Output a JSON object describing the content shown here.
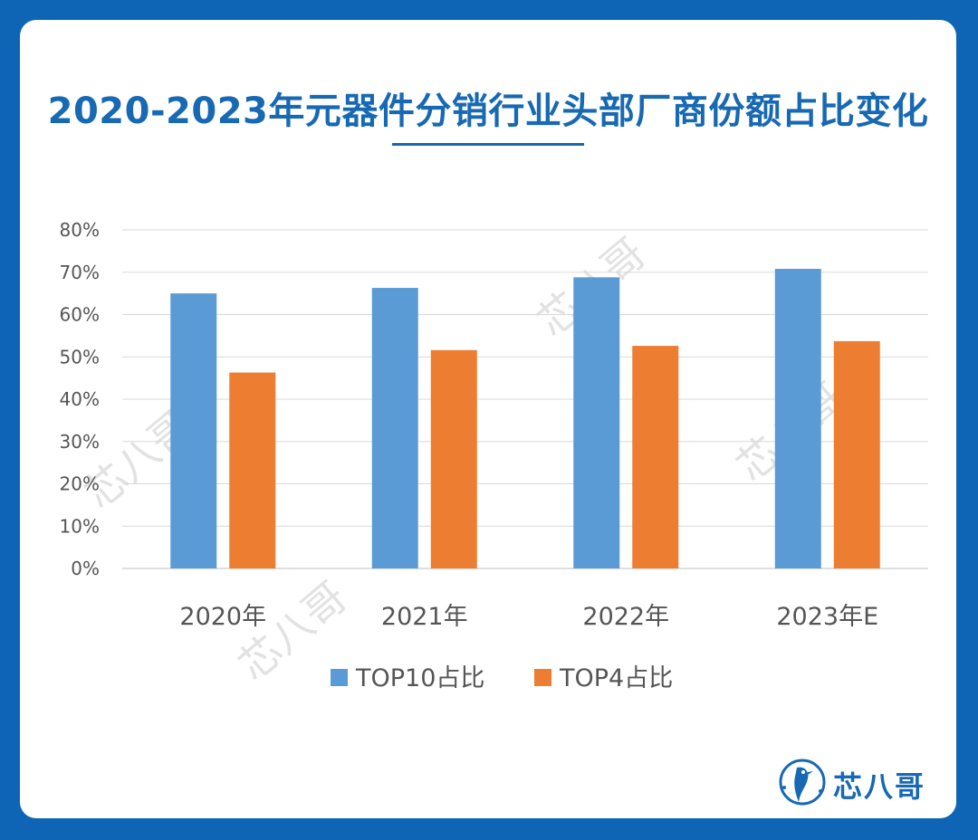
{
  "header": {
    "title": "2020-2023年元器件分销行业头部厂商份额占比变化"
  },
  "brand": {
    "name": "芯八哥",
    "logo_icon": "bird-logo-icon",
    "accent": "#1769b3"
  },
  "watermark": {
    "text": "芯八哥"
  },
  "chart_data": {
    "type": "bar",
    "title": "2020-2023年元器件分销行业头部厂商份额占比变化",
    "categories": [
      "2020年",
      "2021年",
      "2022年",
      "2023年E"
    ],
    "series": [
      {
        "name": "TOP10占比",
        "color": "#5b9bd5",
        "values": [
          0.65,
          0.663,
          0.688,
          0.708
        ]
      },
      {
        "name": "TOP4占比",
        "color": "#ed7d31",
        "values": [
          0.463,
          0.516,
          0.526,
          0.537
        ]
      }
    ],
    "y_ticks": [
      "0%",
      "10%",
      "20%",
      "30%",
      "40%",
      "50%",
      "60%",
      "70%",
      "80%"
    ],
    "ylim": [
      0,
      0.8
    ],
    "grid": true,
    "legend_position": "bottom"
  }
}
